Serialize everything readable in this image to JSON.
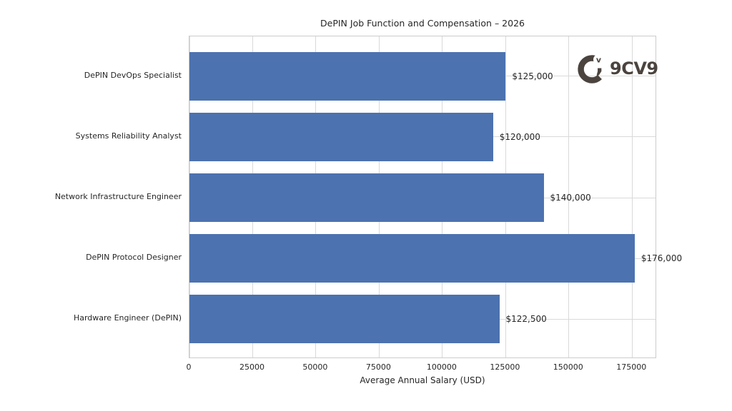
{
  "chart_data": {
    "type": "bar",
    "orientation": "horizontal",
    "title": "DePIN Job Function and Compensation – 2026",
    "xlabel": "Average Annual Salary (USD)",
    "ylabel": "",
    "categories": [
      "DePIN DevOps Specialist",
      "Systems Reliability Analyst",
      "Network Infrastructure Engineer",
      "DePIN Protocol Designer",
      "Hardware Engineer (DePIN)"
    ],
    "values": [
      125000,
      120000,
      140000,
      176000,
      122500
    ],
    "value_labels": [
      "$125,000",
      "$120,000",
      "$140,000",
      "$176,000",
      "$122,500"
    ],
    "x_ticks": [
      0,
      25000,
      50000,
      75000,
      100000,
      125000,
      150000,
      175000
    ],
    "x_tick_labels": [
      "0",
      "25000",
      "50000",
      "75000",
      "100000",
      "125000",
      "150000",
      "175000"
    ],
    "xlim": [
      0,
      184800
    ],
    "grid": true,
    "legend": null,
    "watermark": "9CV9"
  },
  "colors": {
    "bar": "#4c72b0",
    "grid": "#d9d9d9",
    "spine": "#cccccc",
    "text": "#262626",
    "logo": "#4b433e"
  },
  "logo": {
    "text": "9CV9",
    "badge_letter": "v"
  }
}
